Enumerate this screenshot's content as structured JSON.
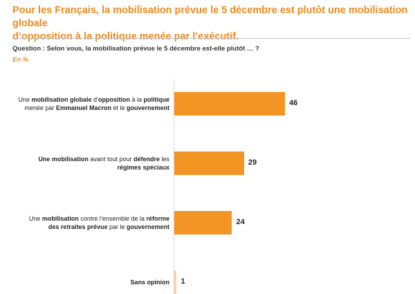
{
  "title_lines": [
    "Pour les Français, la mobilisation prévue le 5 décembre est plutôt une mobilisation globale",
    "d’opposition à la politique menée par l’exécutif."
  ],
  "question": "Question : Selon vous, la mobilisation prévue le 5 décembre est-elle plutôt … ?",
  "unit": "En %",
  "colors": {
    "accent": "#ef8a1e",
    "bar": "#f39524"
  },
  "chart_data": {
    "type": "bar",
    "orientation": "horizontal",
    "unit": "%",
    "categories": [
      "Une mobilisation globale d’opposition à la politique menée par Emmanuel Macron et le gouvernement",
      "Une mobilisation avant tout pour défendre les régimes spéciaux",
      "Une mobilisation contre l’ensemble de la réforme des retraites prévue par le gouvernement",
      "Sans opinion"
    ],
    "category_labels": [
      [
        [
          {
            "t": "Une ",
            "b": false
          },
          {
            "t": "mobilisation globale",
            "b": true
          },
          {
            "t": " d’",
            "b": false
          },
          {
            "t": "opposition",
            "b": true
          },
          {
            "t": " à la ",
            "b": false
          },
          {
            "t": "politique",
            "b": true
          }
        ],
        [
          {
            "t": "menée par ",
            "b": false
          },
          {
            "t": "Emmanuel Macron",
            "b": true
          },
          {
            "t": " et le ",
            "b": false
          },
          {
            "t": "gouvernement",
            "b": true
          }
        ]
      ],
      [
        [
          {
            "t": "Une mobilisation",
            "b": true
          },
          {
            "t": " avant tout pour ",
            "b": false
          },
          {
            "t": "défendre",
            "b": true
          },
          {
            "t": " les",
            "b": false
          }
        ],
        [
          {
            "t": "régimes spéciaux",
            "b": true
          }
        ]
      ],
      [
        [
          {
            "t": "Une ",
            "b": false
          },
          {
            "t": "mobilisation",
            "b": true
          },
          {
            "t": " contre l’ensemble de la ",
            "b": false
          },
          {
            "t": "réforme",
            "b": true
          }
        ],
        [
          {
            "t": "des retraites prévue",
            "b": true
          },
          {
            "t": " par le ",
            "b": false
          },
          {
            "t": "gouvernement",
            "b": true
          }
        ]
      ],
      [
        [
          {
            "t": "Sans opinion",
            "b": true
          }
        ]
      ]
    ],
    "values": [
      46,
      29,
      24,
      1
    ],
    "xlim": [
      0,
      100
    ],
    "grid": false,
    "legend": "none"
  }
}
